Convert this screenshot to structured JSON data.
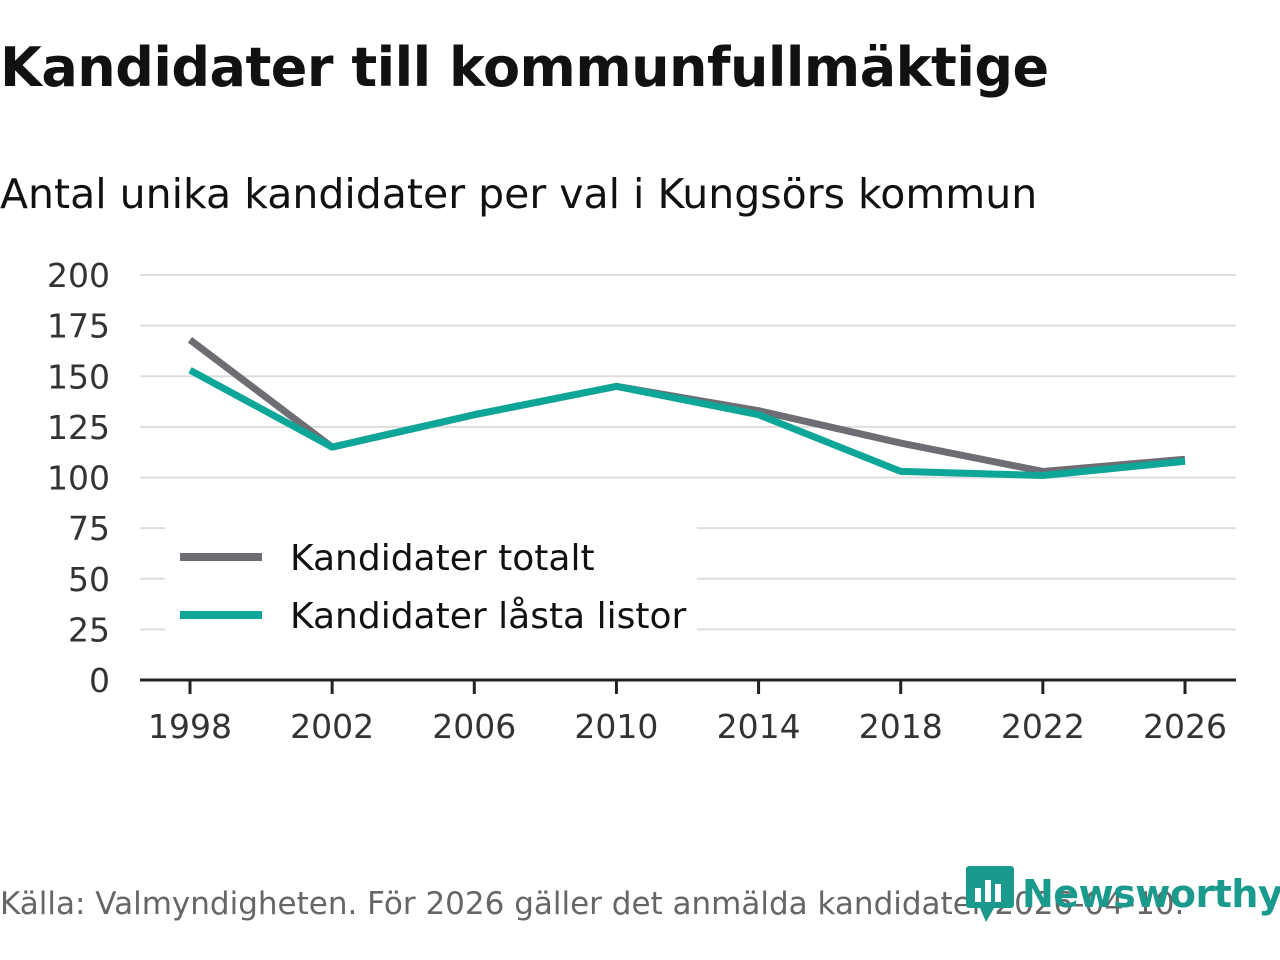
{
  "title": "Kandidater till kommunfullmäktige",
  "subtitle": "Antal unika kandidater per val i Kungsörs kommun",
  "source": "Källa: Valmyndigheten. För 2026 gäller det anmälda kandidater 2026-04-10.",
  "brand": {
    "name": "Newsworthy",
    "icon": "newsworthy-logo-icon"
  },
  "colors": {
    "totalt": "#6d6d73",
    "lasta": "#0ea699",
    "grid": "#dddddd",
    "axis": "#222222",
    "brand": "#1a9a8c"
  },
  "chart_data": {
    "type": "line",
    "x": [
      1998,
      2002,
      2006,
      2010,
      2014,
      2018,
      2022,
      2026
    ],
    "xticks": [
      "1998",
      "2002",
      "2006",
      "2010",
      "2014",
      "2018",
      "2022",
      "2026"
    ],
    "yticks": [
      "0",
      "25",
      "50",
      "75",
      "100",
      "125",
      "150",
      "175",
      "200"
    ],
    "ylim": [
      0,
      200
    ],
    "xlabel": "",
    "ylabel": "",
    "grid": true,
    "legend_position": "bottom-left",
    "series": [
      {
        "name": "Kandidater totalt",
        "values": [
          168,
          115,
          131,
          145,
          133,
          117,
          103,
          109
        ]
      },
      {
        "name": "Kandidater låsta listor",
        "values": [
          153,
          115,
          131,
          145,
          131,
          103,
          101,
          108
        ]
      }
    ]
  }
}
